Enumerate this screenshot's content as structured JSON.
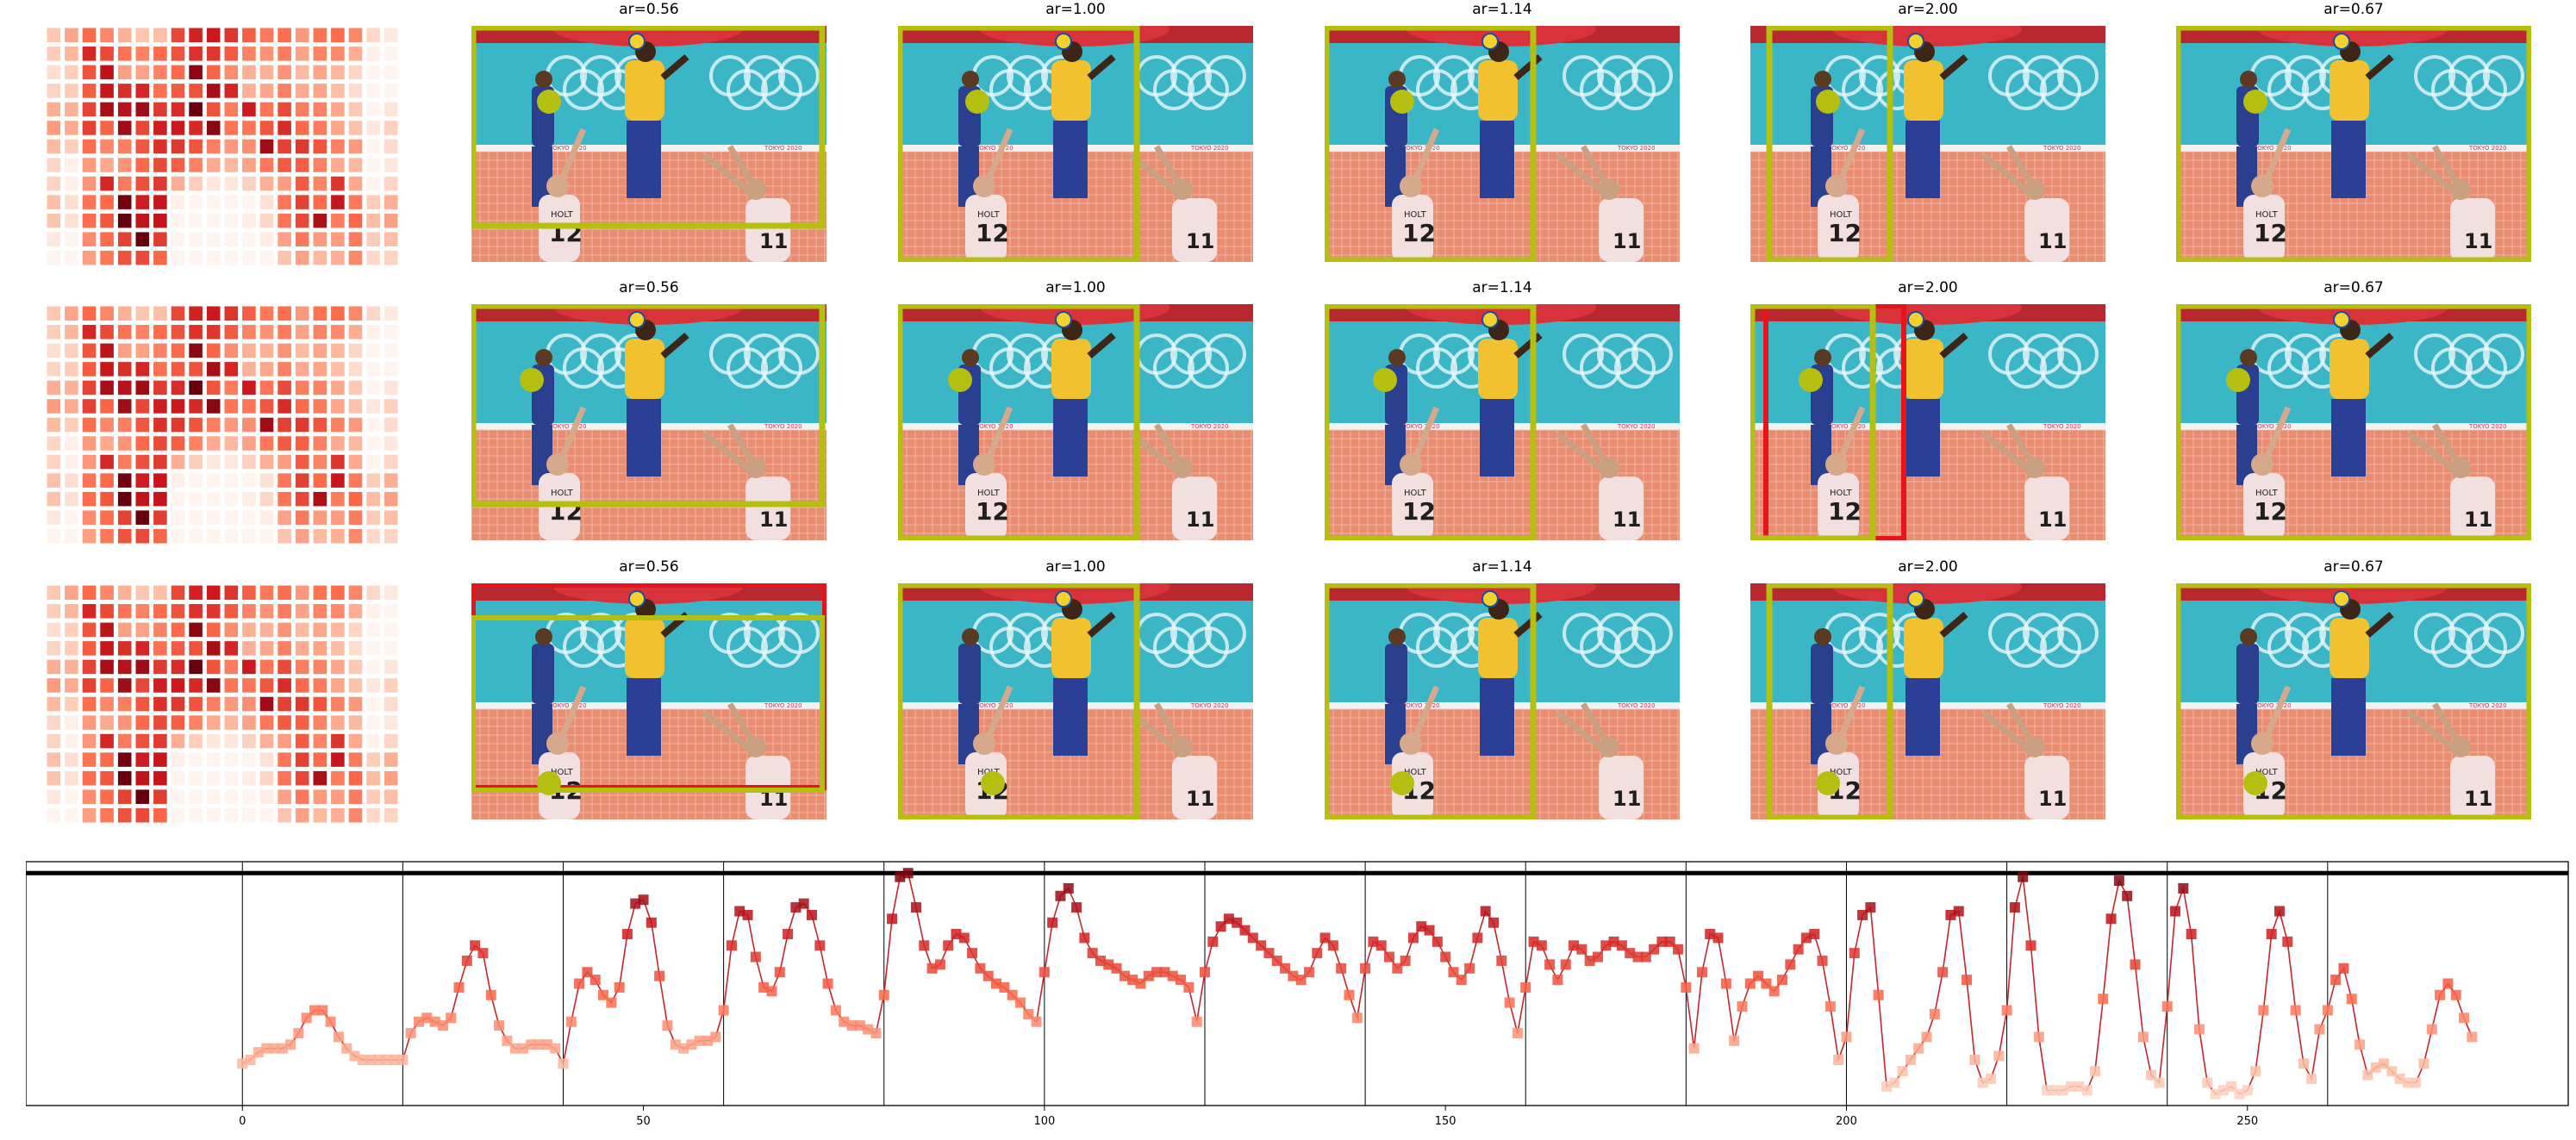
{
  "rows": [
    {
      "panels": [
        {
          "title": "ar=0.56"
        },
        {
          "title": "ar=1.00"
        },
        {
          "title": "ar=1.14"
        },
        {
          "title": "ar=2.00"
        },
        {
          "title": "ar=0.67"
        }
      ]
    },
    {
      "panels": [
        {
          "title": "ar=0.56"
        },
        {
          "title": "ar=1.00"
        },
        {
          "title": "ar=1.14"
        },
        {
          "title": "ar=2.00"
        },
        {
          "title": "ar=0.67"
        }
      ]
    },
    {
      "panels": [
        {
          "title": "ar=0.56"
        },
        {
          "title": "ar=1.00"
        },
        {
          "title": "ar=1.14"
        },
        {
          "title": "ar=2.00"
        },
        {
          "title": "ar=0.67"
        }
      ]
    }
  ],
  "photo_text": {
    "jersey_left": "12",
    "jersey_right": "11",
    "name_left": "HOLT",
    "board_left": "TOKYO 2020",
    "board_right": "TOKYO 2020"
  },
  "colors": {
    "box_primary": "#b5bf10",
    "box_secondary": "#e8141b",
    "line": "#c9242b",
    "marker_low": "#fbd5c6",
    "marker_high": "#99131d"
  },
  "chart_data": {
    "type": "line",
    "title": "",
    "xlabel": "",
    "ylabel": "",
    "xlim": [
      -27,
      290
    ],
    "ylim": [
      -0.9,
      5.5
    ],
    "xticks": [
      0,
      50,
      100,
      150,
      200,
      250
    ],
    "yticks": [
      0,
      1,
      2,
      3,
      4,
      5
    ],
    "vlines": [
      0,
      20,
      40,
      60,
      80,
      100,
      120,
      140,
      160,
      180,
      200,
      220,
      240,
      260
    ],
    "hline": 5.2,
    "grid": false,
    "markers_every": 1,
    "x_start": 0,
    "values": [
      0.2,
      0.3,
      0.5,
      0.6,
      0.6,
      0.6,
      0.7,
      1.0,
      1.4,
      1.6,
      1.6,
      1.3,
      0.9,
      0.6,
      0.4,
      0.3,
      0.3,
      0.3,
      0.3,
      0.3,
      0.3,
      1.0,
      1.3,
      1.4,
      1.3,
      1.2,
      1.4,
      2.2,
      2.9,
      3.3,
      3.1,
      2.0,
      1.2,
      0.8,
      0.6,
      0.6,
      0.7,
      0.7,
      0.7,
      0.6,
      0.2,
      1.3,
      2.3,
      2.6,
      2.4,
      2.0,
      1.8,
      2.2,
      3.6,
      4.4,
      4.5,
      3.9,
      2.5,
      1.2,
      0.7,
      0.6,
      0.7,
      0.8,
      0.8,
      0.9,
      1.6,
      3.3,
      4.2,
      4.1,
      3.0,
      2.2,
      2.1,
      2.6,
      3.6,
      4.3,
      4.4,
      4.1,
      3.3,
      2.3,
      1.6,
      1.3,
      1.2,
      1.2,
      1.1,
      1.0,
      2.0,
      4.0,
      5.1,
      5.2,
      4.3,
      3.3,
      2.7,
      2.8,
      3.3,
      3.6,
      3.5,
      3.1,
      2.7,
      2.5,
      2.3,
      2.2,
      2.0,
      1.8,
      1.5,
      1.3,
      2.6,
      3.9,
      4.6,
      4.8,
      4.3,
      3.5,
      3.1,
      2.9,
      2.8,
      2.7,
      2.5,
      2.4,
      2.3,
      2.5,
      2.6,
      2.6,
      2.5,
      2.4,
      2.2,
      1.3,
      2.6,
      3.4,
      3.8,
      4.0,
      3.9,
      3.7,
      3.5,
      3.3,
      3.1,
      2.9,
      2.7,
      2.5,
      2.4,
      2.6,
      3.1,
      3.5,
      3.3,
      2.7,
      2.0,
      1.4,
      2.7,
      3.4,
      3.3,
      3.0,
      2.7,
      2.9,
      3.5,
      3.8,
      3.7,
      3.4,
      3.0,
      2.6,
      2.4,
      2.7,
      3.5,
      4.2,
      3.9,
      2.9,
      1.8,
      1.0,
      2.2,
      3.4,
      3.3,
      2.8,
      2.4,
      2.8,
      3.3,
      3.2,
      2.9,
      3.0,
      3.3,
      3.4,
      3.3,
      3.1,
      3.0,
      3.0,
      3.2,
      3.4,
      3.4,
      3.2,
      2.2,
      0.6,
      2.6,
      3.6,
      3.5,
      2.3,
      0.8,
      1.7,
      2.3,
      2.5,
      2.3,
      2.1,
      2.4,
      2.8,
      3.2,
      3.5,
      3.6,
      2.9,
      1.7,
      0.3,
      0.9,
      3.1,
      4.1,
      4.3,
      2.0,
      -0.4,
      -0.3,
      0.0,
      0.3,
      0.6,
      0.9,
      1.5,
      2.6,
      4.1,
      4.2,
      2.4,
      0.3,
      -0.3,
      -0.2,
      0.4,
      1.6,
      4.3,
      5.1,
      3.3,
      0.9,
      -0.5,
      -0.5,
      -0.5,
      -0.4,
      -0.4,
      -0.5,
      0.0,
      1.9,
      4.0,
      5.0,
      4.6,
      2.8,
      0.9,
      -0.1,
      -0.3,
      1.7,
      4.2,
      4.8,
      3.6,
      1.1,
      -0.3,
      -0.6,
      -0.5,
      -0.4,
      -0.6,
      -0.5,
      0.0,
      1.6,
      3.6,
      4.2,
      3.4,
      1.6,
      0.2,
      -0.2,
      1.1,
      1.6,
      2.4,
      2.7,
      1.9,
      0.7,
      -0.1,
      0.1,
      0.2,
      0.0,
      -0.2,
      -0.3,
      -0.3,
      0.2,
      1.1,
      2.0,
      2.3,
      2.0,
      1.4,
      0.9
    ]
  }
}
